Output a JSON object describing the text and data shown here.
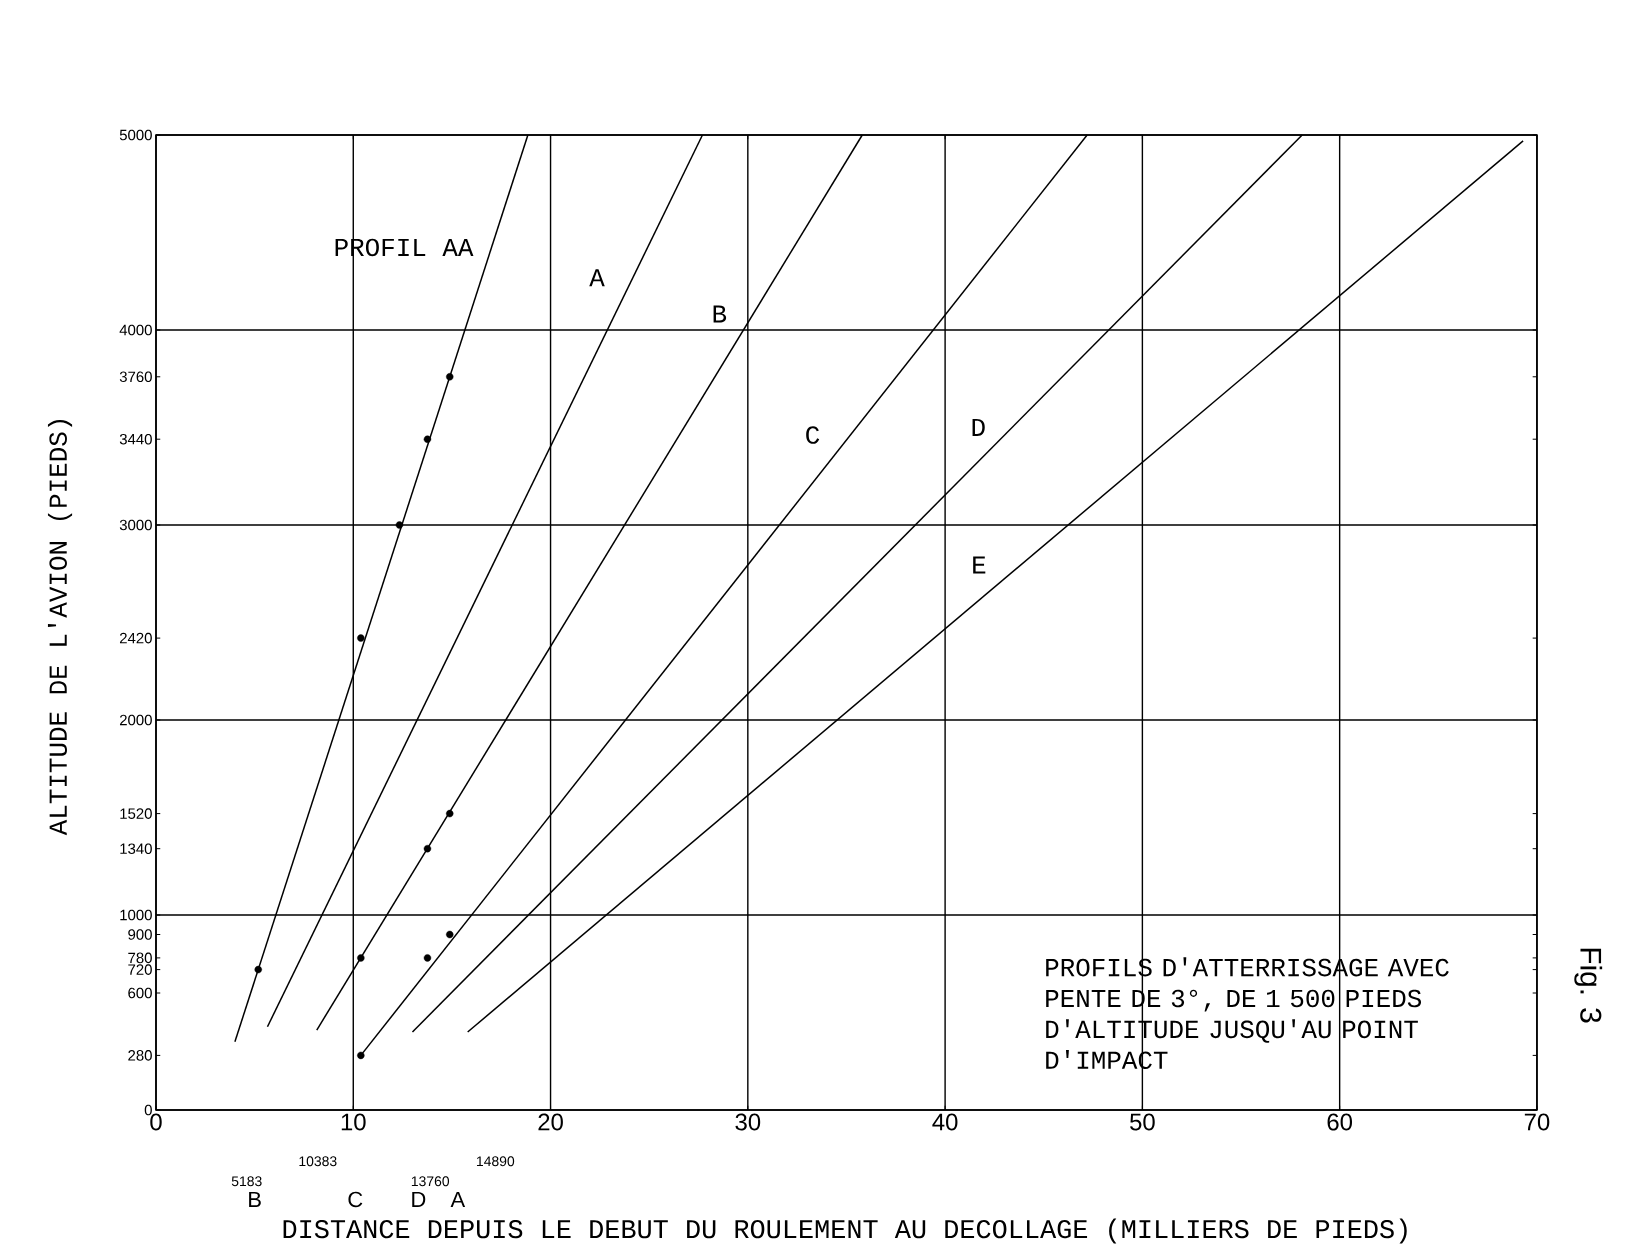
{
  "chart_data": {
    "type": "line",
    "xlabel": "DISTANCE DEPUIS LE DEBUT DU ROULEMENT AU DECOLLAGE (MILLIERS DE PIEDS)",
    "ylabel": "ALTITUDE DE L'AVION (PIEDS)",
    "annotations": [
      "PROFILS D'ATTERRISSAGE AVEC PENTE DE 3°, DE 1 500 PIEDS D'ALTITUDE JUSQU'AU POINT D'IMPACT",
      "Fig. 3",
      "B",
      "C",
      "D",
      "A",
      "5183",
      "10383",
      "13760",
      "14890"
    ],
    "series": [
      {
        "name": "PROFIL AA",
        "color": "#000000",
        "x": [
          4.0,
          18.85
        ],
        "values": [
          350,
          5000
        ]
      },
      {
        "name": "A",
        "color": "#000000",
        "x": [
          5.65,
          27.7
        ],
        "values": [
          427,
          5000
        ]
      },
      {
        "name": "B",
        "color": "#000000",
        "x": [
          8.15,
          35.8
        ],
        "values": [
          410,
          5000
        ]
      },
      {
        "name": "C",
        "color": "#000000",
        "x": [
          10.383,
          47.2
        ],
        "values": [
          280,
          5000
        ]
      },
      {
        "name": "D",
        "color": "#000000",
        "x": [
          13.0,
          58.1
        ],
        "values": [
          400,
          5000
        ]
      },
      {
        "name": "E",
        "color": "#000000",
        "x": [
          15.8,
          69.3
        ],
        "values": [
          400,
          4970
        ]
      },
      {
        "type": "scatter",
        "color": "#000000",
        "marker": "circle",
        "x": [
          5.183,
          10.383,
          12.34,
          13.76,
          14.89,
          10.383,
          13.76,
          14.89,
          10.383,
          13.76,
          14.89
        ],
        "values": [
          720,
          2420,
          3000,
          3440,
          3760,
          780,
          1340,
          1520,
          280,
          780,
          900
        ]
      }
    ],
    "xlim": [
      0,
      70
    ],
    "ylim": [
      0,
      5000
    ],
    "xticks": [
      0,
      10,
      20,
      30,
      40,
      50,
      60,
      70
    ],
    "yticks": [
      0,
      1000,
      2000,
      3000,
      4000,
      5000,
      {
        "value": 280,
        "label": "280"
      },
      {
        "value": 600,
        "label": "600"
      },
      {
        "value": 720,
        "label": "720"
      },
      {
        "value": 780,
        "label": "780"
      },
      {
        "value": 900,
        "label": "900"
      },
      {
        "value": 1340,
        "label": "1340"
      },
      {
        "value": 1520,
        "label": "1520"
      },
      {
        "value": 2420,
        "label": "2420"
      },
      {
        "value": 3440,
        "label": "3440"
      },
      {
        "value": 3760,
        "label": "3760"
      }
    ],
    "grid": true,
    "marker": "none",
    "line_style": "solid"
  }
}
